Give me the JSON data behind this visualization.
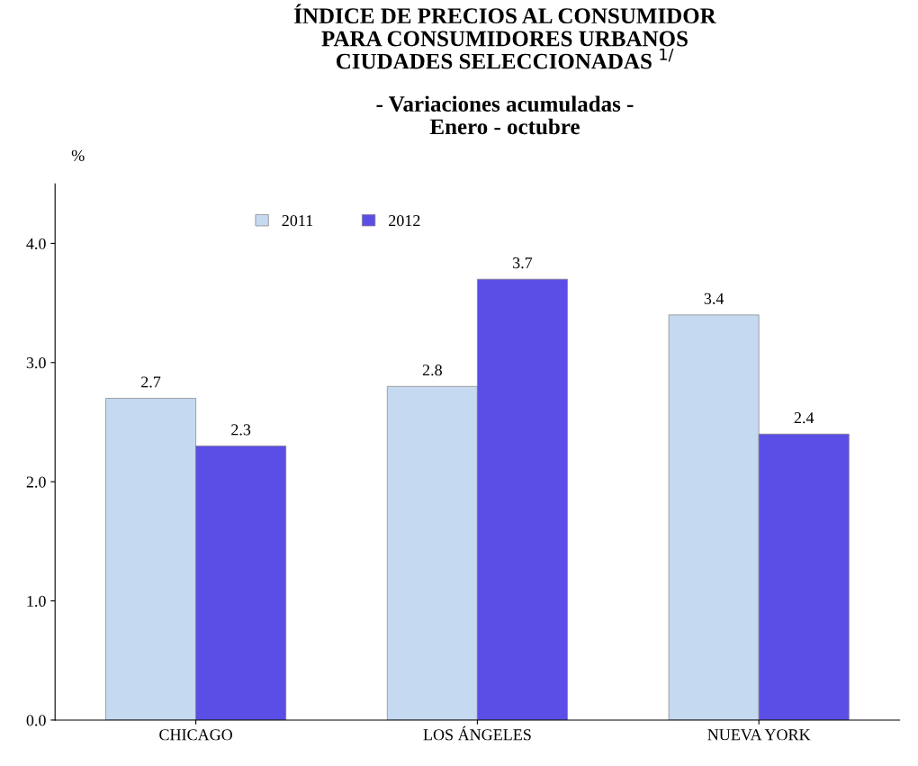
{
  "chart_data": {
    "type": "bar",
    "title": "ÍNDICE DE PRECIOS AL CONSUMIDOR\nPARA CONSUMIDORES URBANOS\nCIUDADES SELECCIONADAS $^{1/}$",
    "subtitle": "- Variaciones acumuladas -\nEnero - octubre",
    "ylabel": "%",
    "categories": [
      "CHICAGO",
      "LOS ÁNGELES",
      "NUEVA YORK"
    ],
    "series": [
      {
        "name": "2011",
        "color": "#c5d9f1",
        "values": [
          2.7,
          2.8,
          3.4
        ]
      },
      {
        "name": "2012",
        "color": "#5a4ee6",
        "values": [
          2.3,
          3.7,
          2.4
        ]
      }
    ],
    "ylim": [
      0,
      4.5
    ],
    "yticks": [
      {
        "value": 0,
        "label": "0.0"
      },
      {
        "value": 1,
        "label": "1.0"
      },
      {
        "value": 2,
        "label": "2.0"
      },
      {
        "value": 3,
        "label": "3.0"
      },
      {
        "value": 4,
        "label": "4.0"
      }
    ],
    "data_labels": true,
    "legend": "top left",
    "grid": false
  }
}
